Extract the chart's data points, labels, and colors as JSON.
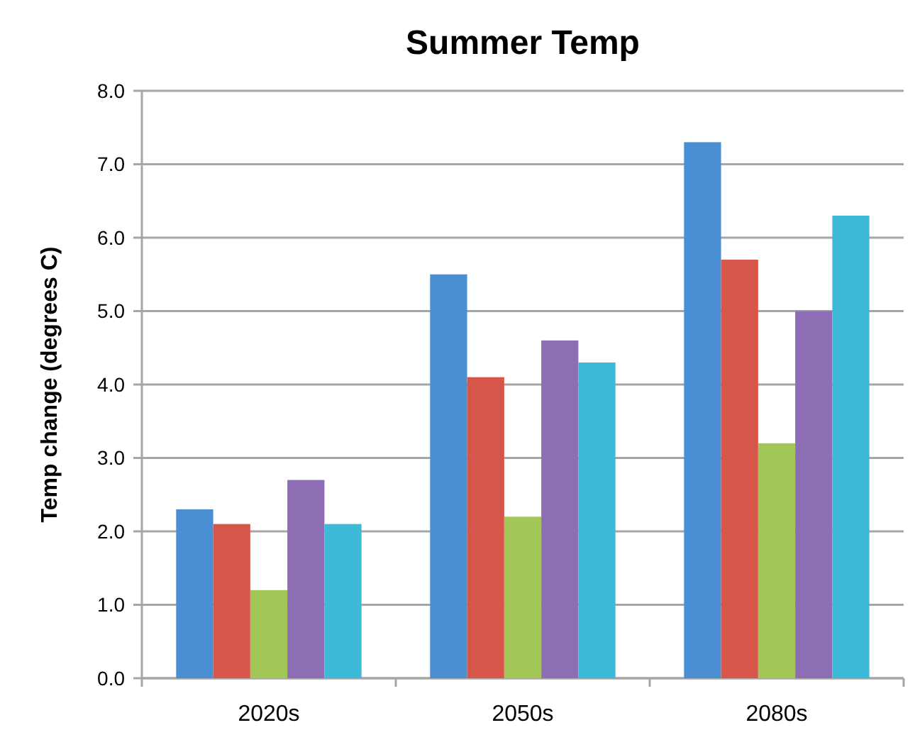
{
  "chart_data": {
    "type": "bar",
    "title": "Summer Temp",
    "ylabel": "Temp change (degrees C)",
    "categories": [
      "2020s",
      "2050s",
      "2080s"
    ],
    "series": [
      {
        "color": "#4a8fd4",
        "values": [
          2.3,
          5.5,
          7.3
        ]
      },
      {
        "color": "#d8554a",
        "values": [
          2.1,
          4.1,
          5.7
        ]
      },
      {
        "color": "#a3c757",
        "values": [
          1.2,
          2.2,
          3.2
        ]
      },
      {
        "color": "#8d6db4",
        "values": [
          2.7,
          4.6,
          5.0
        ]
      },
      {
        "color": "#3dbad8",
        "values": [
          2.1,
          4.3,
          6.3
        ]
      }
    ],
    "ylim": [
      0,
      8
    ],
    "yticks": [
      {
        "value": 0,
        "label": "0.0"
      },
      {
        "value": 1,
        "label": "1.0"
      },
      {
        "value": 2,
        "label": "2.0"
      },
      {
        "value": 3,
        "label": "3.0"
      },
      {
        "value": 4,
        "label": "4.0"
      },
      {
        "value": 5,
        "label": "5.0"
      },
      {
        "value": 6,
        "label": "6.0"
      },
      {
        "value": 7,
        "label": "7.0"
      },
      {
        "value": 8,
        "label": "8.0"
      }
    ],
    "grid": "y"
  }
}
